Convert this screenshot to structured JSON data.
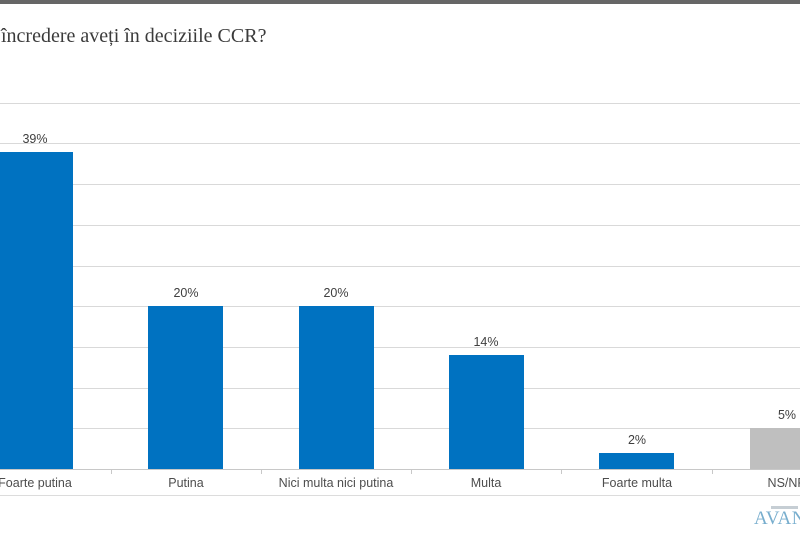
{
  "header": {
    "title": "încredere aveți în deciziile CCR?"
  },
  "branding": {
    "logo_text": "AVAN"
  },
  "colors": {
    "bar_blue": "#0072C1",
    "bar_gray": "#BFBFBF",
    "gridline": "#D9D9D9",
    "axis_line": "#C8C8C8",
    "top_strip": "#666666",
    "data_label": "#3F3F3F",
    "category_label": "#4D4D4D",
    "logo_blue": "#78AECE"
  },
  "chart_data": {
    "type": "bar",
    "title": "încredere aveți în deciziile CCR?",
    "categories": [
      "Foarte putina",
      "Putina",
      "Nici multa nici putina",
      "Multa",
      "Foarte multa",
      "NS/NR"
    ],
    "values": [
      39,
      20,
      20,
      14,
      2,
      5
    ],
    "data_labels": [
      "39%",
      "20%",
      "20%",
      "14%",
      "2%",
      "5%"
    ],
    "series_colors": [
      "#0072C1",
      "#0072C1",
      "#0072C1",
      "#0072C1",
      "#0072C1",
      "#BFBFBF"
    ],
    "xlabel": "",
    "ylabel": "",
    "ylim": [
      0,
      45
    ],
    "gridline_step": 5,
    "grid": true,
    "legend_position": "none"
  }
}
